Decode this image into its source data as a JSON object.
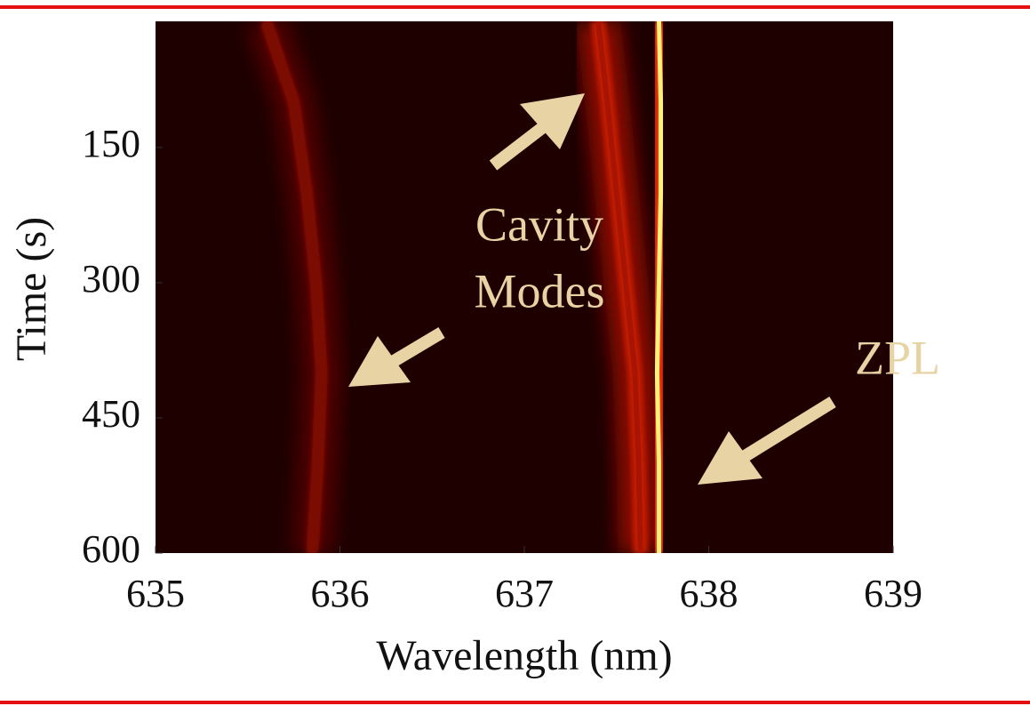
{
  "chart_data": {
    "type": "heatmap",
    "xlabel": "Wavelength (nm)",
    "ylabel": "Time (s)",
    "xlim": [
      635,
      639
    ],
    "xticks": [
      635,
      636,
      637,
      638,
      639
    ],
    "ylim": [
      10,
      600
    ],
    "yticks": [
      150,
      300,
      450,
      600
    ],
    "y_inverted": true,
    "background": "#1e0000",
    "times": [
      10,
      100,
      200,
      300,
      400,
      500,
      600
    ],
    "ridges": [
      {
        "color": "#7a0c02",
        "values": [
          635.6,
          635.75,
          635.82,
          635.87,
          635.9,
          635.88,
          635.85
        ]
      },
      {
        "color": "#a81404",
        "values": [
          637.4,
          637.45,
          637.5,
          637.55,
          637.6,
          637.62,
          637.63
        ]
      },
      {
        "color": "#fff27a",
        "values": [
          637.73,
          637.74,
          637.74,
          637.73,
          637.72,
          637.73,
          637.73
        ]
      }
    ],
    "annotations": [
      {
        "lines": [
          "Cavity",
          "Modes"
        ]
      },
      {
        "lines": [
          "ZPL"
        ]
      }
    ]
  }
}
